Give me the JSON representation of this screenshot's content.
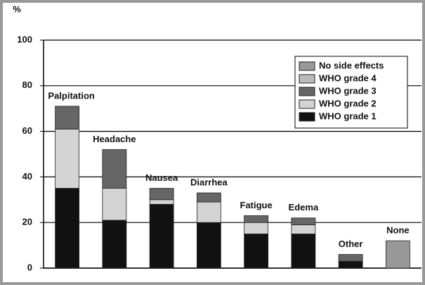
{
  "chart_data": {
    "type": "stacked_bar",
    "y_label": "%",
    "categories": [
      "Palpitation",
      "Headache",
      "Nausea",
      "Diarrhea",
      "Fatigue",
      "Edema",
      "Other",
      "None"
    ],
    "series": [
      {
        "name": "WHO grade 1",
        "color": "#111111",
        "values": [
          35,
          21,
          28,
          20,
          15,
          15,
          3,
          0
        ]
      },
      {
        "name": "WHO grade 2",
        "color": "#d4d4d4",
        "values": [
          26,
          14,
          2,
          9,
          5,
          4,
          0,
          0
        ]
      },
      {
        "name": "WHO grade 3",
        "color": "#666666",
        "values": [
          10,
          17,
          5,
          4,
          3,
          3,
          3,
          0
        ]
      },
      {
        "name": "WHO grade 4",
        "color": "#bbbbbb",
        "values": [
          0,
          0,
          0,
          0,
          0,
          0,
          0,
          0
        ]
      },
      {
        "name": "No side effects",
        "color": "#999999",
        "values": [
          0,
          0,
          0,
          0,
          0,
          0,
          0,
          12
        ]
      }
    ],
    "ylim": [
      0,
      100
    ],
    "yticks": [
      0,
      20,
      40,
      60,
      80,
      100
    ],
    "grid": true,
    "legend": "top-right"
  }
}
